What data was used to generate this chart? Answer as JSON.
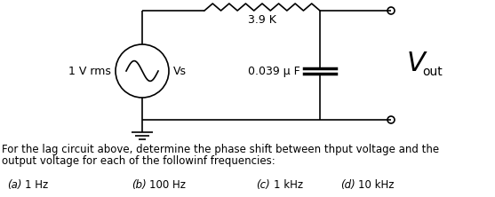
{
  "bg_color": "#ffffff",
  "line_color": "#000000",
  "resistor_label": "3.9 K",
  "capacitor_label": "0.039 μ F",
  "source_label_left": "1 V rms",
  "source_label_right": "Vs",
  "vout_label_V": "V",
  "vout_label_out": "out",
  "para1": "For the lag circuit above, determine the phase shift between th​put voltage and the",
  "para2": "output voltage for each of the followinf frequencies:",
  "freq_a_label": "(a)",
  "freq_a_val": "1 Hz",
  "freq_b_label": "(b)",
  "freq_b_val": "100 Hz",
  "freq_c_label": "(c)",
  "freq_c_val": "1 kHz",
  "freq_d_label": "(d)",
  "freq_d_val": "10 kHz",
  "figsize": [
    5.57,
    2.22
  ],
  "dpi": 100
}
